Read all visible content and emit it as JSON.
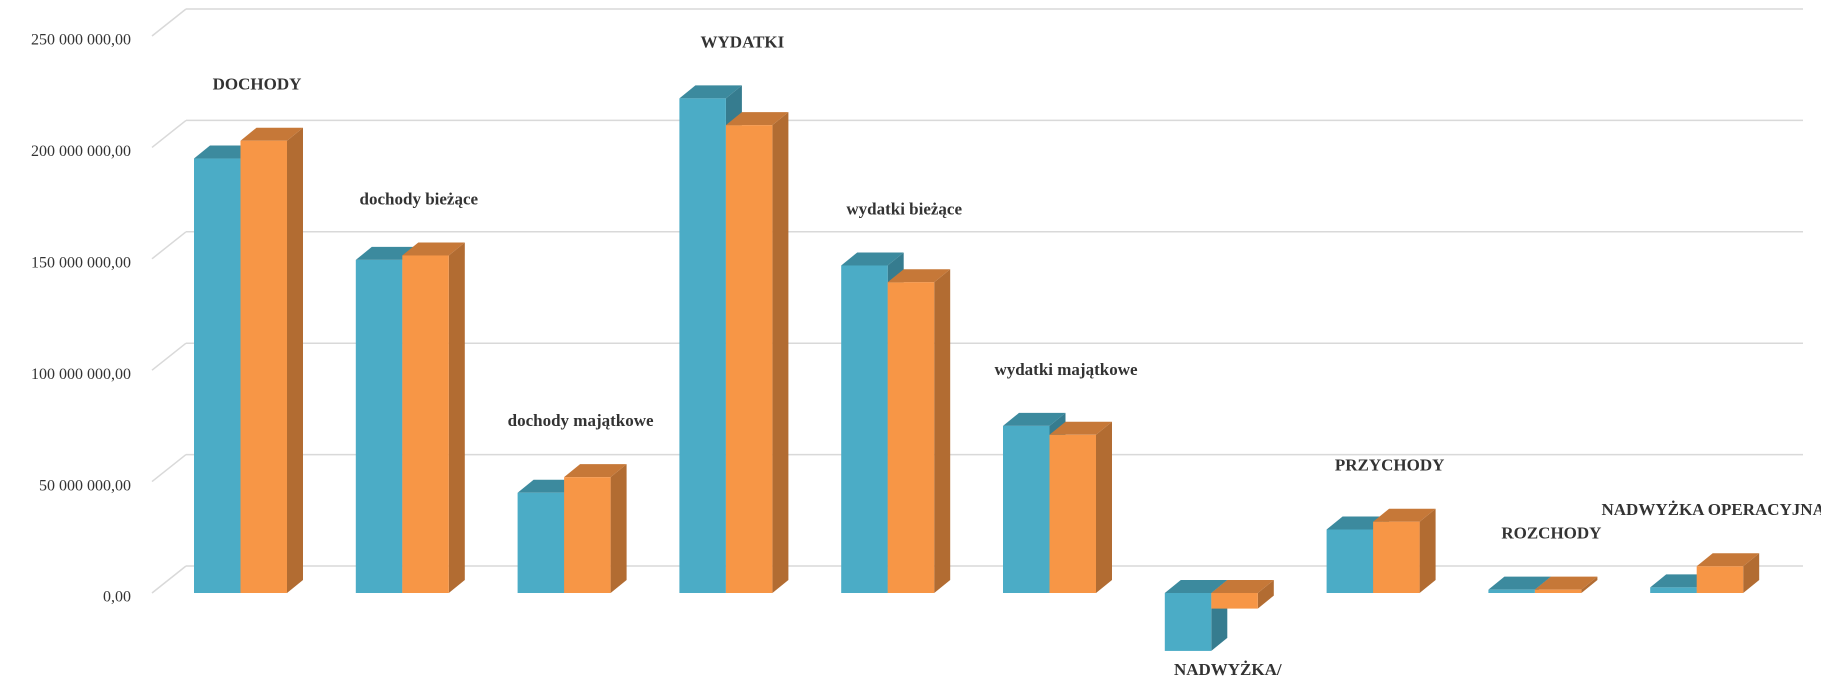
{
  "chart_data": {
    "type": "bar3d",
    "categories": [
      "DOCHODY",
      "dochody bieżące",
      "dochody majątkowe",
      "WYDATKI",
      "wydatki bieżące",
      "wydatki majątkowe",
      "NADWYŻKA/ DEFICYT",
      "PRZYCHODY",
      "ROZCHODY",
      "NADWYŻKA OPERACYJNA"
    ],
    "series": [
      {
        "color": "#4BACC6",
        "values": [
          195000000,
          149500000,
          45000000,
          222000000,
          147000000,
          75000000,
          -26000000,
          28500000,
          1500000,
          2500000
        ]
      },
      {
        "color": "#F79646",
        "values": [
          203000000,
          151500000,
          52000000,
          210000000,
          139500000,
          71000000,
          -7000000,
          32000000,
          1500000,
          12000000
        ]
      }
    ],
    "ylim": [
      0,
      250000000
    ],
    "yticks": [
      {
        "value": 0,
        "label": "0,00"
      },
      {
        "value": 50000000,
        "label": "50 000 000,00"
      },
      {
        "value": 100000000,
        "label": "100 000 000,00"
      },
      {
        "value": 150000000,
        "label": "150 000 000,00"
      },
      {
        "value": 200000000,
        "label": "200 000 000,00"
      },
      {
        "value": 250000000,
        "label": "250 000 000,00"
      }
    ],
    "grid": true
  }
}
